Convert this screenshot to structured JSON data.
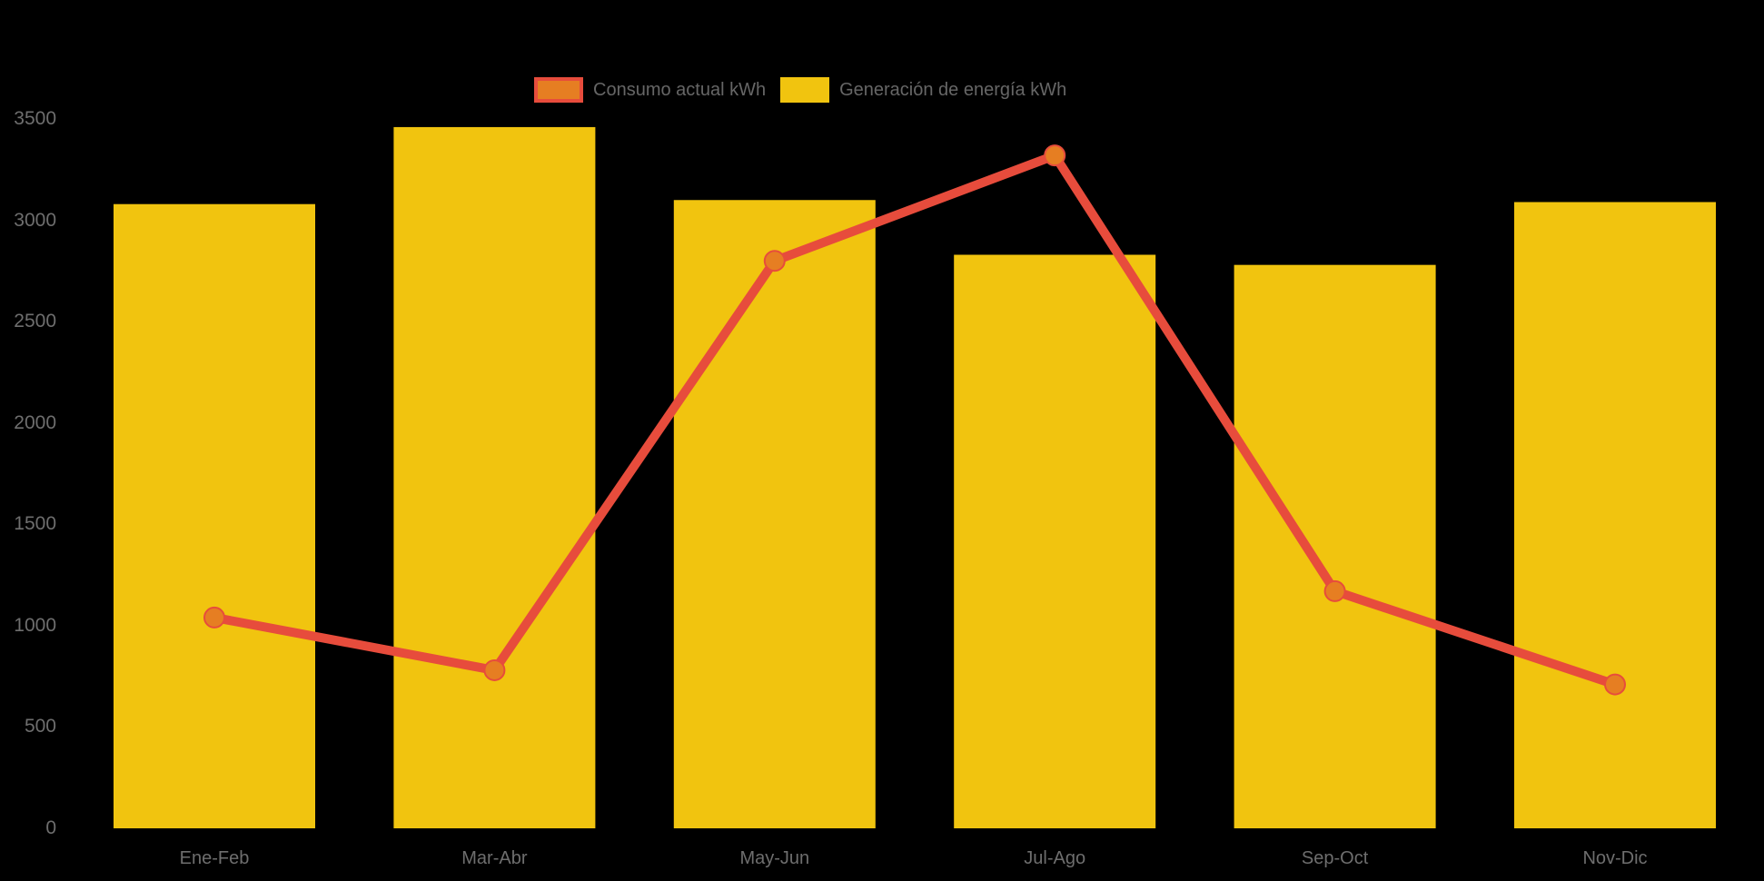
{
  "chart": {
    "background": "#000000",
    "axis_label_color": "#6e6e6e",
    "legend_text_color": "#666666"
  },
  "legend": {
    "items": [
      {
        "label": "Consumo actual kWh",
        "swatch_fill": "#E67E22",
        "swatch_border": "#E74C3C",
        "series_type": "line"
      },
      {
        "label": "Generación de energía kWh",
        "swatch_fill": "#F1C40F",
        "swatch_border": "#F1C40F",
        "series_type": "bar"
      }
    ]
  },
  "chart_data": {
    "type": "bar",
    "subtype": "bar-with-line-overlay",
    "title": "",
    "xlabel": "",
    "ylabel": "",
    "categories": [
      "Ene-Feb",
      "Mar-Abr",
      "May-Jun",
      "Jul-Ago",
      "Sep-Oct",
      "Nov-Dic"
    ],
    "series": [
      {
        "name": "Generación de energía kWh",
        "type": "bar",
        "color": "#F1C40F",
        "values": [
          3080,
          3460,
          3100,
          2830,
          2780,
          3090
        ]
      },
      {
        "name": "Consumo actual kWh",
        "type": "line",
        "color": "#E74C3C",
        "marker_color": "#E67E22",
        "values": [
          1040,
          780,
          2800,
          3320,
          1170,
          710
        ]
      }
    ],
    "ylim": [
      0,
      3500
    ],
    "yticks": [
      0,
      500,
      1000,
      1500,
      2000,
      2500,
      3000,
      3500
    ],
    "grid": false,
    "legend_position": "top"
  }
}
